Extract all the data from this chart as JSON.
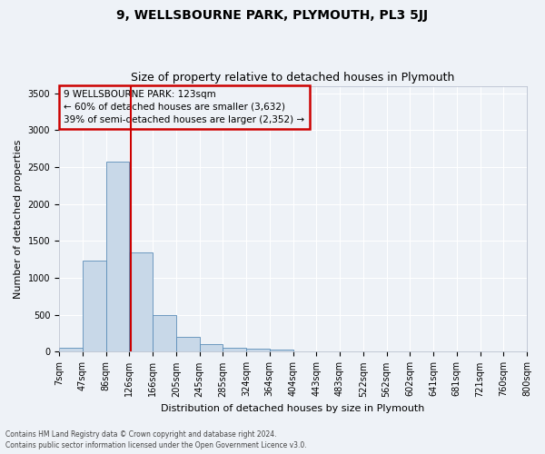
{
  "title": "9, WELLSBOURNE PARK, PLYMOUTH, PL3 5JJ",
  "subtitle": "Size of property relative to detached houses in Plymouth",
  "xlabel": "Distribution of detached houses by size in Plymouth",
  "ylabel": "Number of detached properties",
  "bar_values": [
    55,
    1230,
    2570,
    1340,
    500,
    200,
    105,
    50,
    45,
    35,
    0,
    0,
    0,
    0,
    0,
    0,
    0,
    0,
    0,
    0
  ],
  "bar_labels": [
    "7sqm",
    "47sqm",
    "86sqm",
    "126sqm",
    "166sqm",
    "205sqm",
    "245sqm",
    "285sqm",
    "324sqm",
    "364sqm",
    "404sqm",
    "443sqm",
    "483sqm",
    "522sqm",
    "562sqm",
    "602sqm",
    "641sqm",
    "681sqm",
    "721sqm",
    "760sqm",
    "800sqm"
  ],
  "bar_color": "#c8d8e8",
  "bar_edge_color": "#5b8db8",
  "vline_x": 2.58,
  "vline_color": "#cc0000",
  "annotation_text": "9 WELLSBOURNE PARK: 123sqm\n← 60% of detached houses are smaller (3,632)\n39% of semi-detached houses are larger (2,352) →",
  "annotation_box_color": "#cc0000",
  "ylim": [
    0,
    3600
  ],
  "yticks": [
    0,
    500,
    1000,
    1500,
    2000,
    2500,
    3000,
    3500
  ],
  "footnote1": "Contains HM Land Registry data © Crown copyright and database right 2024.",
  "footnote2": "Contains public sector information licensed under the Open Government Licence v3.0.",
  "bg_color": "#eef2f7",
  "grid_color": "#ffffff",
  "title_fontsize": 10,
  "subtitle_fontsize": 9,
  "axis_label_fontsize": 8,
  "tick_fontsize": 7
}
